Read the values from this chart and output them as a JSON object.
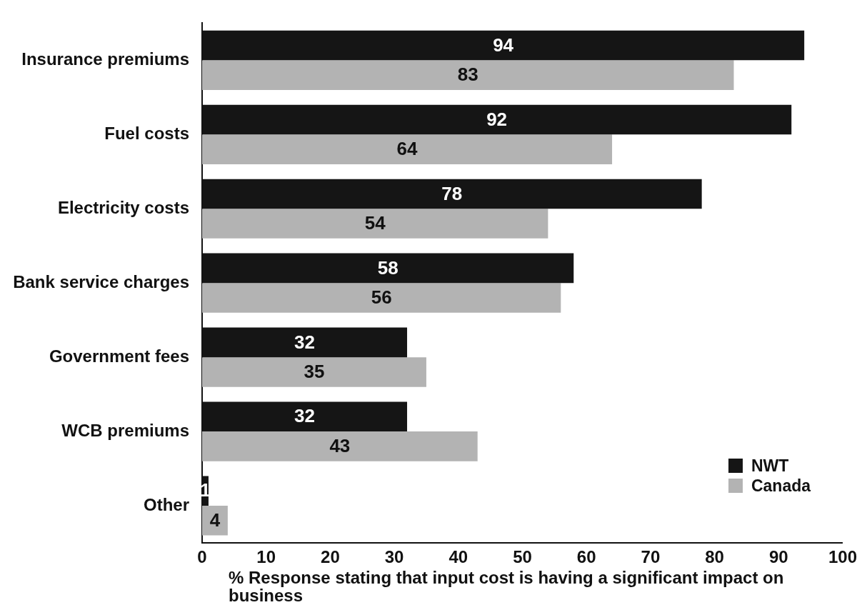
{
  "chart_data": {
    "type": "bar",
    "orientation": "horizontal",
    "categories": [
      "Insurance premiums",
      "Fuel costs",
      "Electricity costs",
      "Bank service charges",
      "Government fees",
      "WCB premiums",
      "Other"
    ],
    "series": [
      {
        "name": "NWT",
        "color": "#151515",
        "values": [
          94,
          92,
          78,
          58,
          32,
          32,
          1
        ]
      },
      {
        "name": "Canada",
        "color": "#b3b3b3",
        "values": [
          83,
          64,
          54,
          56,
          35,
          43,
          4
        ]
      }
    ],
    "xlabel": "% Response stating that input cost is having a significant impact on business",
    "xlim": [
      0,
      100
    ],
    "xticks": [
      0,
      10,
      20,
      30,
      40,
      50,
      60,
      70,
      80,
      90,
      100
    ],
    "data_labels": true,
    "grid": false,
    "legend": "bottom right"
  }
}
